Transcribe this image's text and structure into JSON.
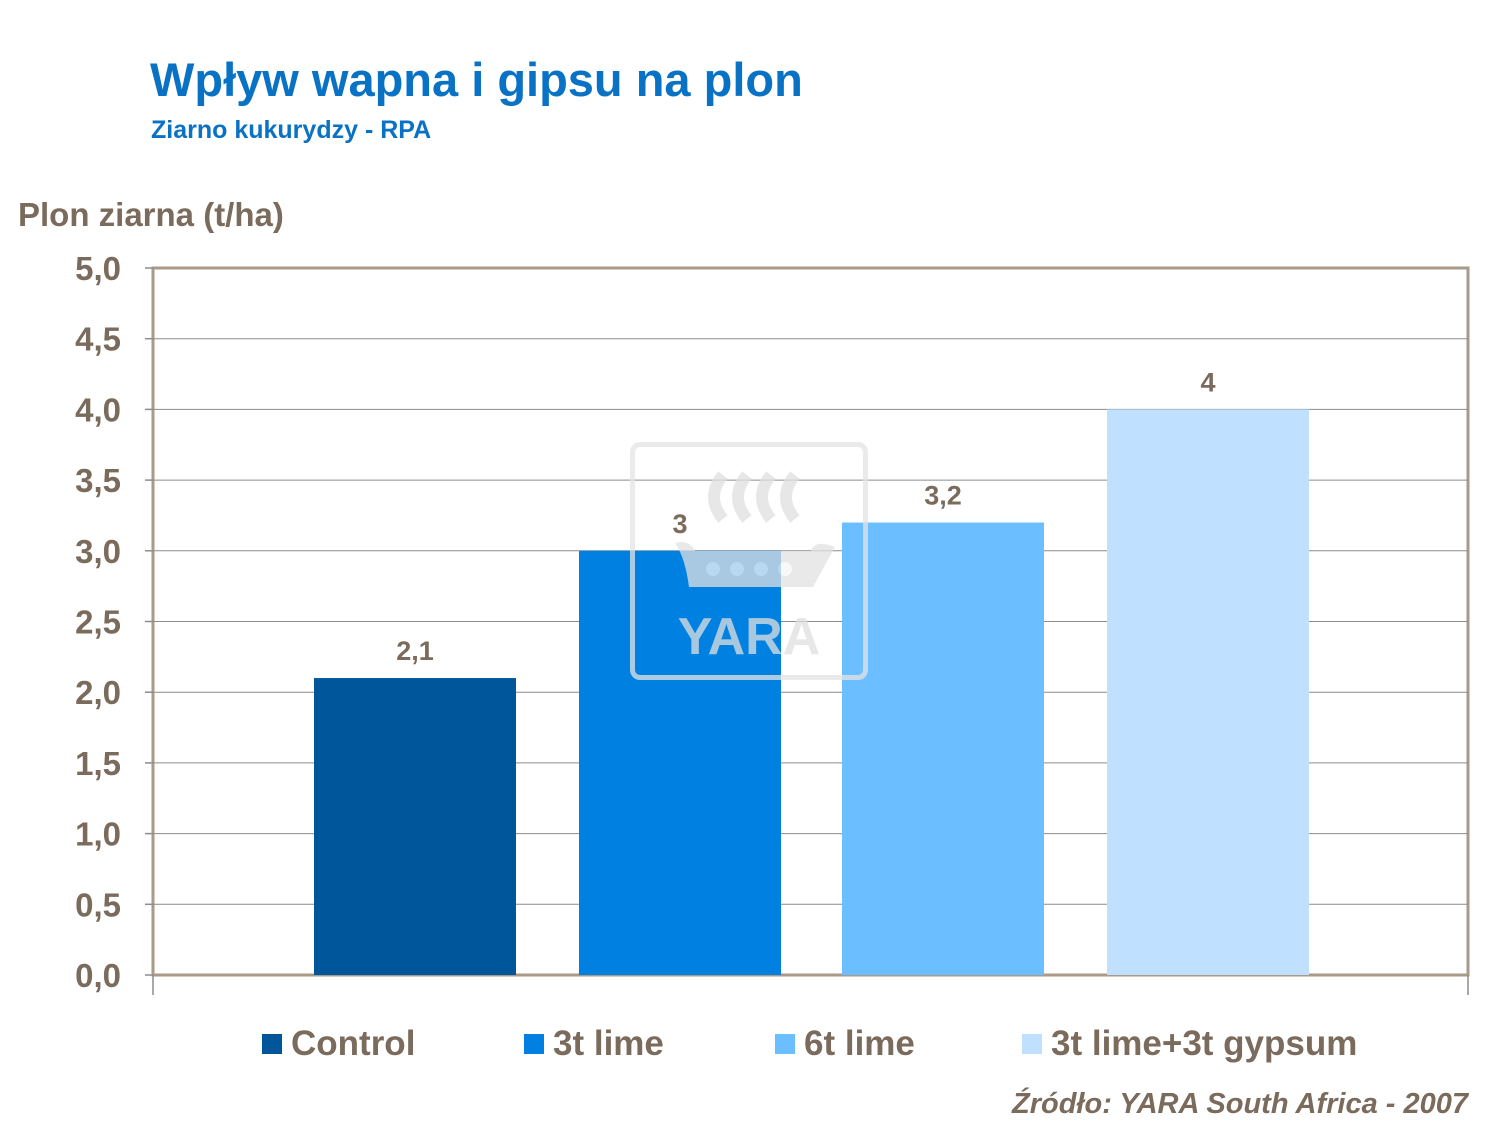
{
  "chart_data": {
    "type": "bar",
    "title": "Wpływ wapna i gipsu na plon",
    "subtitle": "Ziarno kukurydzy - RPA",
    "ylabel": "Plon ziarna (t/ha)",
    "xlabel": "",
    "ylim": [
      0,
      5
    ],
    "y_ticks": [
      "0,0",
      "0,5",
      "1,0",
      "1,5",
      "2,0",
      "2,5",
      "3,0",
      "3,5",
      "4,0",
      "4,5",
      "5,0"
    ],
    "grid": true,
    "legend_position": "bottom",
    "series": [
      {
        "name": "Control",
        "value": 2.1,
        "label": "2,1",
        "color": "#00569a"
      },
      {
        "name": "3t lime",
        "value": 3.0,
        "label": "3",
        "color": "#0081e2"
      },
      {
        "name": "6t lime",
        "value": 3.2,
        "label": "3,2",
        "color": "#6bbeff"
      },
      {
        "name": "3t lime+3t gypsum",
        "value": 4.0,
        "label": "4",
        "color": "#bfe1ff"
      }
    ],
    "source": "Źródło: YARA South Africa - 2007"
  },
  "watermark": {
    "text": "YARA"
  }
}
